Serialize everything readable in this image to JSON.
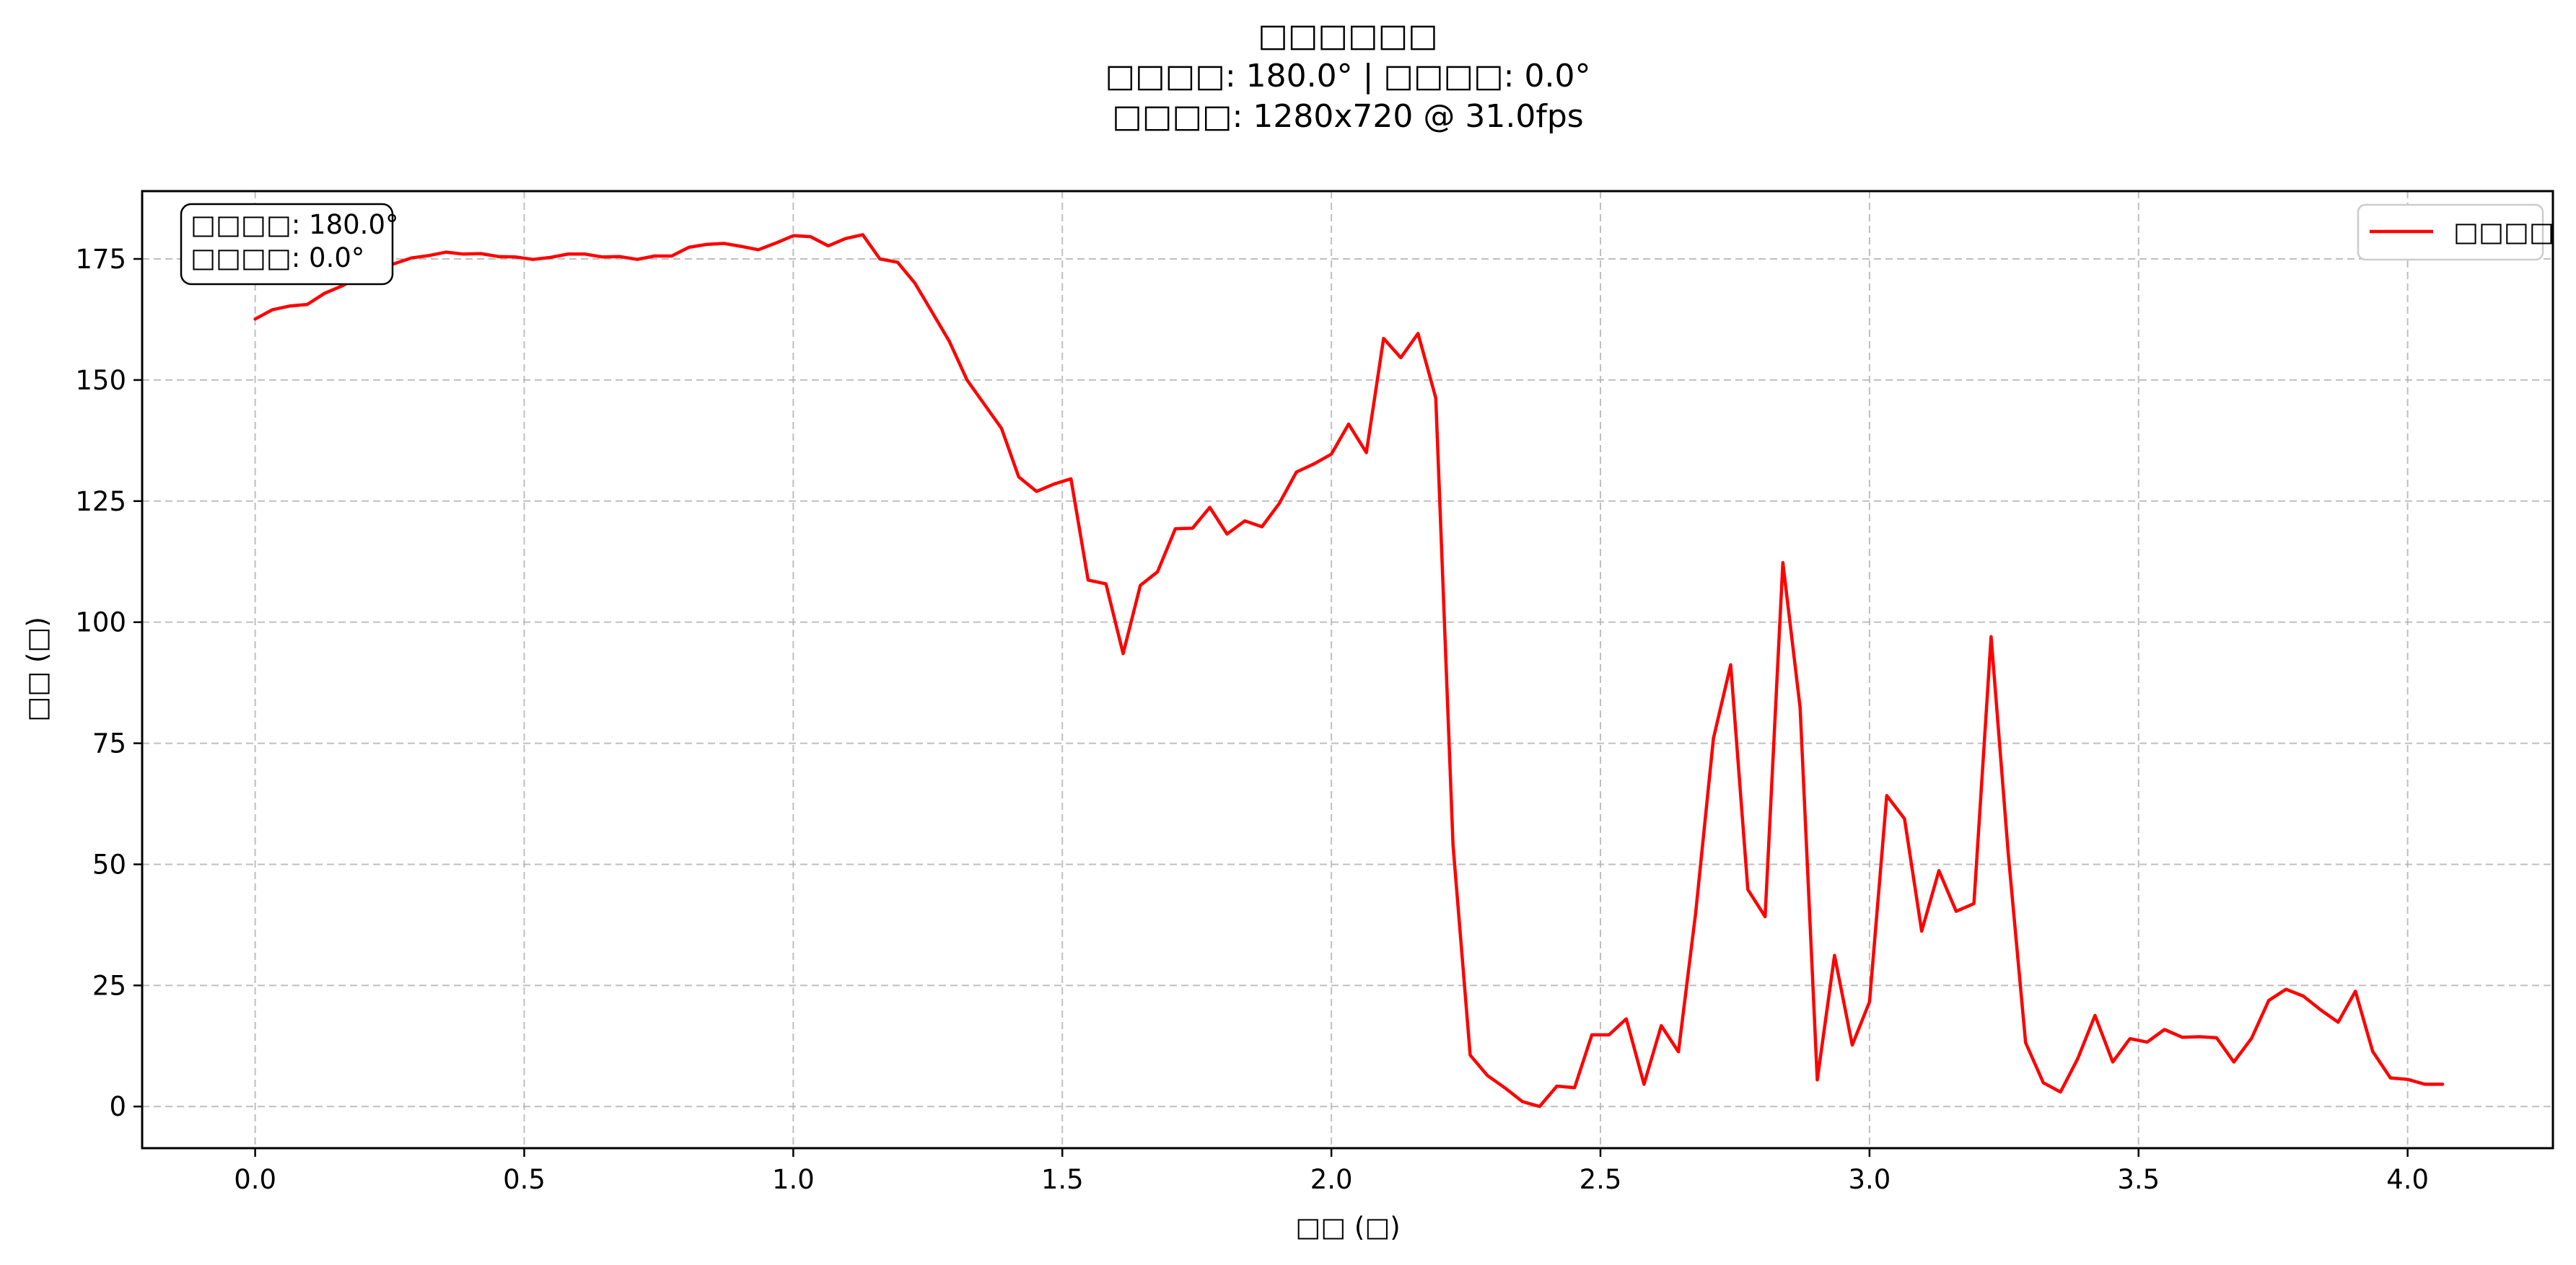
{
  "chart_data": {
    "type": "line",
    "title_lines": [
      "□□□□□□",
      "□□□□: 180.0° | □□□□: 0.0°",
      "□□□□: 1280x720 @ 31.0fps"
    ],
    "xlabel": "□□ (□)",
    "ylabel": "□□ (□)",
    "xlim": [
      -0.21,
      4.27
    ],
    "ylim": [
      -8.6,
      189.0
    ],
    "xticks": [
      0.0,
      0.5,
      1.0,
      1.5,
      2.0,
      2.5,
      3.0,
      3.5,
      4.0
    ],
    "xtick_labels": [
      "0.0",
      "0.5",
      "1.0",
      "1.5",
      "2.0",
      "2.5",
      "3.0",
      "3.5",
      "4.0"
    ],
    "yticks": [
      0,
      25,
      50,
      75,
      100,
      125,
      150,
      175
    ],
    "ytick_labels": [
      "0",
      "25",
      "50",
      "75",
      "100",
      "125",
      "150",
      "175"
    ],
    "grid": true,
    "legend_position": "top-right",
    "info_box": [
      "□□□□: 180.0°",
      "□□□□: 0.0°"
    ],
    "colors": {
      "line": "#ff0000",
      "grid": "#b0b0b0",
      "axes": "#000000"
    },
    "series": [
      {
        "name": "□□□□",
        "x": [
          0.0,
          0.032,
          0.065,
          0.097,
          0.129,
          0.161,
          0.194,
          0.226,
          0.258,
          0.29,
          0.323,
          0.355,
          0.387,
          0.419,
          0.452,
          0.484,
          0.516,
          0.548,
          0.581,
          0.613,
          0.645,
          0.677,
          0.71,
          0.742,
          0.774,
          0.806,
          0.839,
          0.871,
          0.903,
          0.935,
          0.968,
          1.0,
          1.032,
          1.065,
          1.097,
          1.129,
          1.161,
          1.194,
          1.226,
          1.258,
          1.29,
          1.323,
          1.355,
          1.387,
          1.419,
          1.452,
          1.484,
          1.516,
          1.548,
          1.581,
          1.613,
          1.645,
          1.677,
          1.71,
          1.742,
          1.774,
          1.806,
          1.839,
          1.871,
          1.903,
          1.935,
          1.968,
          2.0,
          2.032,
          2.065,
          2.097,
          2.129,
          2.161,
          2.194,
          2.226,
          2.258,
          2.29,
          2.323,
          2.355,
          2.387,
          2.419,
          2.452,
          2.484,
          2.516,
          2.548,
          2.581,
          2.613,
          2.645,
          2.677,
          2.71,
          2.742,
          2.774,
          2.806,
          2.839,
          2.871,
          2.903,
          2.935,
          2.968,
          3.0,
          3.032,
          3.065,
          3.097,
          3.129,
          3.161,
          3.194,
          3.226,
          3.258,
          3.29,
          3.323,
          3.355,
          3.387,
          3.419,
          3.452,
          3.484,
          3.516,
          3.548,
          3.581,
          3.613,
          3.645,
          3.677,
          3.71,
          3.742,
          3.774,
          3.806,
          3.839,
          3.871,
          3.903,
          3.935,
          3.968,
          4.0,
          4.032,
          4.065
        ],
        "values": [
          162.6,
          164.5,
          165.3,
          165.6,
          167.9,
          169.4,
          171.2,
          172.6,
          174.0,
          175.2,
          175.7,
          176.4,
          176.0,
          176.1,
          175.5,
          175.4,
          174.9,
          175.3,
          176.0,
          176.0,
          175.4,
          175.5,
          174.9,
          175.6,
          175.6,
          177.4,
          178.0,
          178.2,
          177.6,
          176.9,
          178.3,
          179.8,
          179.6,
          177.7,
          179.2,
          180.0,
          175.0,
          174.3,
          170.0,
          164.0,
          158.0,
          150.0,
          145.0,
          140.0,
          130.0,
          127.0,
          128.5,
          129.6,
          108.7,
          107.9,
          93.5,
          107.6,
          110.4,
          119.3,
          119.4,
          123.7,
          118.2,
          120.9,
          119.7,
          124.5,
          131.0,
          132.7,
          134.7,
          140.9,
          135.0,
          158.6,
          154.6,
          159.6,
          146.3,
          54.0,
          10.6,
          6.4,
          3.8,
          1.0,
          0.0,
          4.2,
          3.9,
          14.8,
          14.8,
          18.1,
          4.6,
          16.7,
          11.3,
          40.0,
          76.0,
          91.2,
          44.8,
          39.2,
          112.3,
          82.4,
          5.5,
          31.2,
          12.7,
          21.6,
          64.2,
          59.4,
          36.2,
          48.7,
          40.3,
          41.9,
          97.0,
          52.0,
          13.2,
          4.9,
          3.0,
          9.9,
          18.8,
          9.2,
          14.0,
          13.3,
          15.9,
          14.3,
          14.4,
          14.2,
          9.2,
          14.1,
          21.9,
          24.2,
          22.8,
          19.9,
          17.4,
          23.8,
          11.4,
          5.9,
          5.6,
          4.6,
          4.6
        ]
      }
    ]
  }
}
